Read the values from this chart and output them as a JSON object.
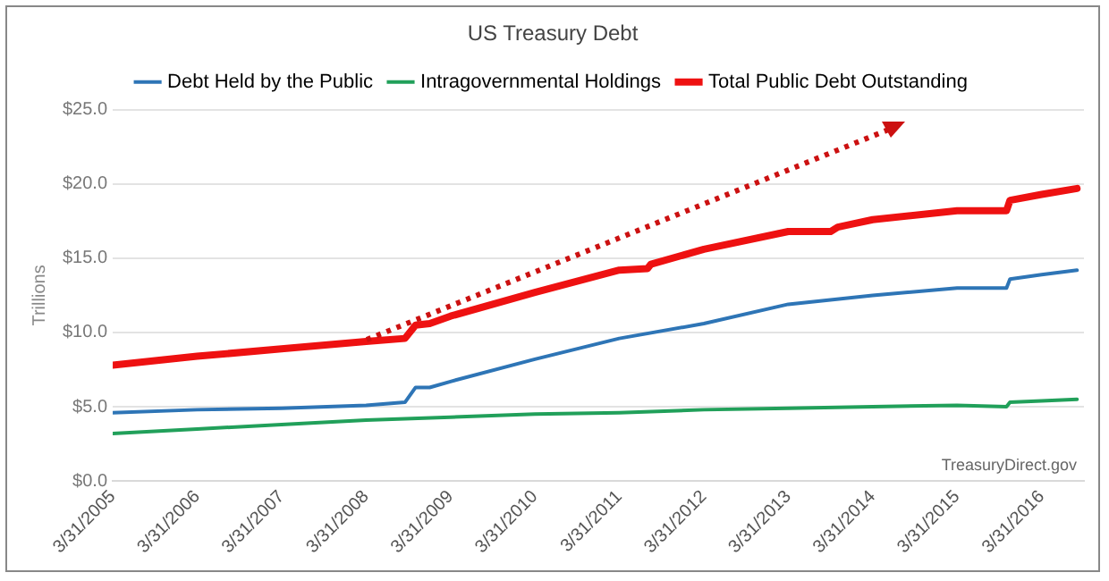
{
  "chart_data": {
    "type": "line",
    "title": "US Treasury Debt",
    "ylabel": "Trillions",
    "annotations": [
      "TreasuryDirect.gov"
    ],
    "xlim": [
      "2005-03-31",
      "2016-09-30"
    ],
    "xticks": [
      {
        "value": "2005-03-31",
        "label": "3/31/2005"
      },
      {
        "value": "2006-03-31",
        "label": "3/31/2006"
      },
      {
        "value": "2007-03-31",
        "label": "3/31/2007"
      },
      {
        "value": "2008-03-31",
        "label": "3/31/2008"
      },
      {
        "value": "2009-03-31",
        "label": "3/31/2009"
      },
      {
        "value": "2010-03-31",
        "label": "3/31/2010"
      },
      {
        "value": "2011-03-31",
        "label": "3/31/2011"
      },
      {
        "value": "2012-03-31",
        "label": "3/31/2012"
      },
      {
        "value": "2013-03-31",
        "label": "3/31/2013"
      },
      {
        "value": "2014-03-31",
        "label": "3/31/2014"
      },
      {
        "value": "2015-03-31",
        "label": "3/31/2015"
      },
      {
        "value": "2016-03-31",
        "label": "3/31/2016"
      }
    ],
    "ylim": [
      0,
      25
    ],
    "yticks": [
      {
        "value": 0,
        "label": "$0.0"
      },
      {
        "value": 5,
        "label": "$5.0"
      },
      {
        "value": 10,
        "label": "$10.0"
      },
      {
        "value": 15,
        "label": "$15.0"
      },
      {
        "value": 20,
        "label": "$20.0"
      },
      {
        "value": 25,
        "label": "$25.0"
      }
    ],
    "grid": "y",
    "legend": "top",
    "marker": "none",
    "line_style": "solid",
    "series": [
      {
        "name": "Debt Held by the Public",
        "color": "#2e75b6",
        "x": [
          "2005-03-31",
          "2006-03-31",
          "2007-03-31",
          "2008-03-31",
          "2008-09-15",
          "2008-10-31",
          "2008-12-31",
          "2009-03-31",
          "2010-03-31",
          "2011-03-31",
          "2012-03-31",
          "2013-03-31",
          "2014-03-31",
          "2015-03-31",
          "2015-10-31",
          "2015-11-15",
          "2016-03-31",
          "2016-08-31"
        ],
        "values": [
          4.6,
          4.8,
          4.9,
          5.1,
          5.3,
          6.3,
          6.3,
          6.7,
          8.2,
          9.6,
          10.6,
          11.9,
          12.5,
          13.0,
          13.0,
          13.6,
          13.9,
          14.2
        ]
      },
      {
        "name": "Intragovernmental Holdings",
        "color": "#21a05a",
        "x": [
          "2005-03-31",
          "2006-03-31",
          "2007-03-31",
          "2008-03-31",
          "2009-03-31",
          "2010-03-31",
          "2011-03-31",
          "2012-03-31",
          "2013-03-31",
          "2014-03-31",
          "2015-03-31",
          "2015-10-31",
          "2015-11-15",
          "2016-03-31",
          "2016-08-31"
        ],
        "values": [
          3.2,
          3.5,
          3.8,
          4.1,
          4.3,
          4.5,
          4.6,
          4.8,
          4.9,
          5.0,
          5.1,
          5.0,
          5.3,
          5.4,
          5.5
        ]
      },
      {
        "name": "Total Public Debt Outstanding",
        "color": "#ee1111",
        "x": [
          "2005-03-31",
          "2006-03-31",
          "2007-03-31",
          "2008-03-31",
          "2008-09-15",
          "2008-10-31",
          "2008-12-31",
          "2009-03-31",
          "2010-03-31",
          "2011-03-31",
          "2011-07-31",
          "2011-08-15",
          "2012-03-31",
          "2013-03-31",
          "2013-09-30",
          "2013-10-31",
          "2014-03-31",
          "2015-03-31",
          "2015-10-31",
          "2015-11-15",
          "2016-03-31",
          "2016-08-31"
        ],
        "values": [
          7.8,
          8.4,
          8.9,
          9.4,
          9.6,
          10.5,
          10.6,
          11.1,
          12.7,
          14.2,
          14.3,
          14.6,
          15.6,
          16.8,
          16.8,
          17.1,
          17.6,
          18.2,
          18.2,
          18.9,
          19.3,
          19.7
        ]
      }
    ]
  }
}
